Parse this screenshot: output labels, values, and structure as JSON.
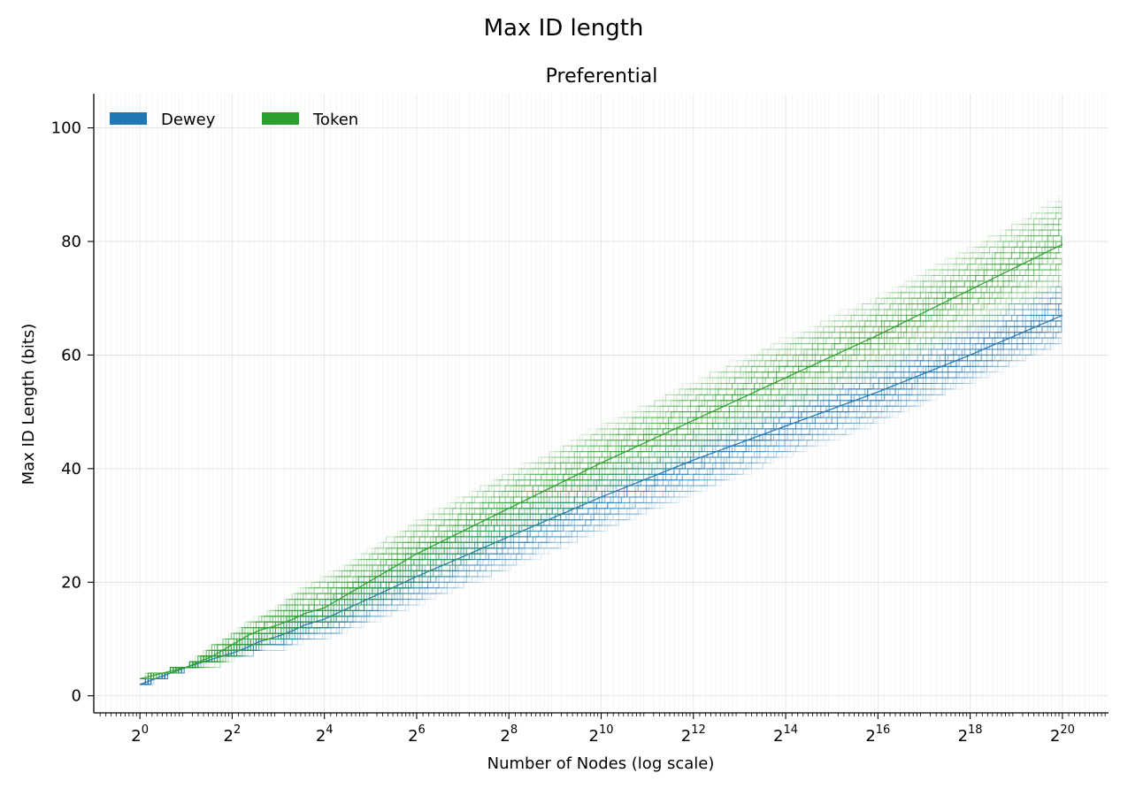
{
  "figure": {
    "suptitle": "Max ID length",
    "colors": {
      "dewey": "#1f77b4",
      "token": "#2ca02c",
      "grid": "#b0b0b0",
      "axis": "#000000"
    }
  },
  "chart_data": {
    "type": "line",
    "title": "Preferential",
    "xlabel": "Number of Nodes (log scale)",
    "ylabel": "Max ID Length (bits)",
    "xscale": "log2",
    "xlim_log2": [
      -1.0,
      21.0
    ],
    "ylim": [
      -3,
      106
    ],
    "x_ticks": [
      {
        "base": "2",
        "exp": "0",
        "log2": 0
      },
      {
        "base": "2",
        "exp": "2",
        "log2": 2
      },
      {
        "base": "2",
        "exp": "4",
        "log2": 4
      },
      {
        "base": "2",
        "exp": "6",
        "log2": 6
      },
      {
        "base": "2",
        "exp": "8",
        "log2": 8
      },
      {
        "base": "2",
        "exp": "10",
        "log2": 10
      },
      {
        "base": "2",
        "exp": "12",
        "log2": 12
      },
      {
        "base": "2",
        "exp": "14",
        "log2": 14
      },
      {
        "base": "2",
        "exp": "16",
        "log2": 16
      },
      {
        "base": "2",
        "exp": "18",
        "log2": 18
      },
      {
        "base": "2",
        "exp": "20",
        "log2": 20
      }
    ],
    "y_ticks": [
      {
        "label": "0",
        "value": 0
      },
      {
        "label": "20",
        "value": 20
      },
      {
        "label": "40",
        "value": 40
      },
      {
        "label": "60",
        "value": 60
      },
      {
        "label": "80",
        "value": 80
      },
      {
        "label": "100",
        "value": 100
      }
    ],
    "grid": true,
    "legend": {
      "position": "top-left",
      "entries": [
        "Dewey",
        "Token"
      ]
    },
    "series": [
      {
        "name": "Dewey",
        "color": "#1f77b4",
        "x_log2": [
          0,
          1,
          1.58,
          2,
          2.32,
          2.58,
          3,
          3.32,
          3.58,
          4,
          6,
          8,
          10,
          12,
          14,
          16,
          18,
          20
        ],
        "median": [
          2,
          5,
          6.5,
          7.5,
          8.5,
          9.5,
          10.5,
          11.5,
          12.5,
          13.5,
          21,
          28,
          35,
          41.5,
          47.5,
          53.5,
          60,
          67
        ],
        "low": [
          2,
          5,
          6,
          7,
          7,
          8,
          8,
          9,
          9.5,
          10,
          16,
          22.5,
          29,
          35.5,
          42,
          48,
          55,
          62
        ],
        "high": [
          2,
          5,
          7.5,
          8.5,
          10,
          11,
          12.5,
          14,
          15.5,
          17,
          26,
          33.5,
          40.5,
          47,
          53.5,
          59.5,
          66,
          73
        ]
      },
      {
        "name": "Token",
        "color": "#2ca02c",
        "x_log2": [
          0,
          1,
          1.58,
          2,
          2.32,
          2.58,
          3,
          3.32,
          3.58,
          4,
          6,
          8,
          10,
          12,
          14,
          16,
          18,
          20
        ],
        "median": [
          3,
          5,
          7,
          9,
          10.5,
          11.5,
          12.5,
          13.5,
          14.5,
          15.5,
          25,
          33,
          41,
          48.5,
          56,
          63.5,
          71.5,
          79.5
        ],
        "low": [
          3,
          5,
          5,
          6.5,
          7.5,
          8.5,
          9.5,
          10.5,
          11,
          11.5,
          19,
          27,
          35,
          42,
          49.5,
          56.5,
          64,
          72
        ],
        "high": [
          3,
          5,
          9,
          11,
          13,
          14,
          16,
          18,
          19.5,
          21,
          31,
          39.5,
          47.5,
          55.5,
          63,
          70.5,
          79,
          88
        ]
      }
    ]
  }
}
